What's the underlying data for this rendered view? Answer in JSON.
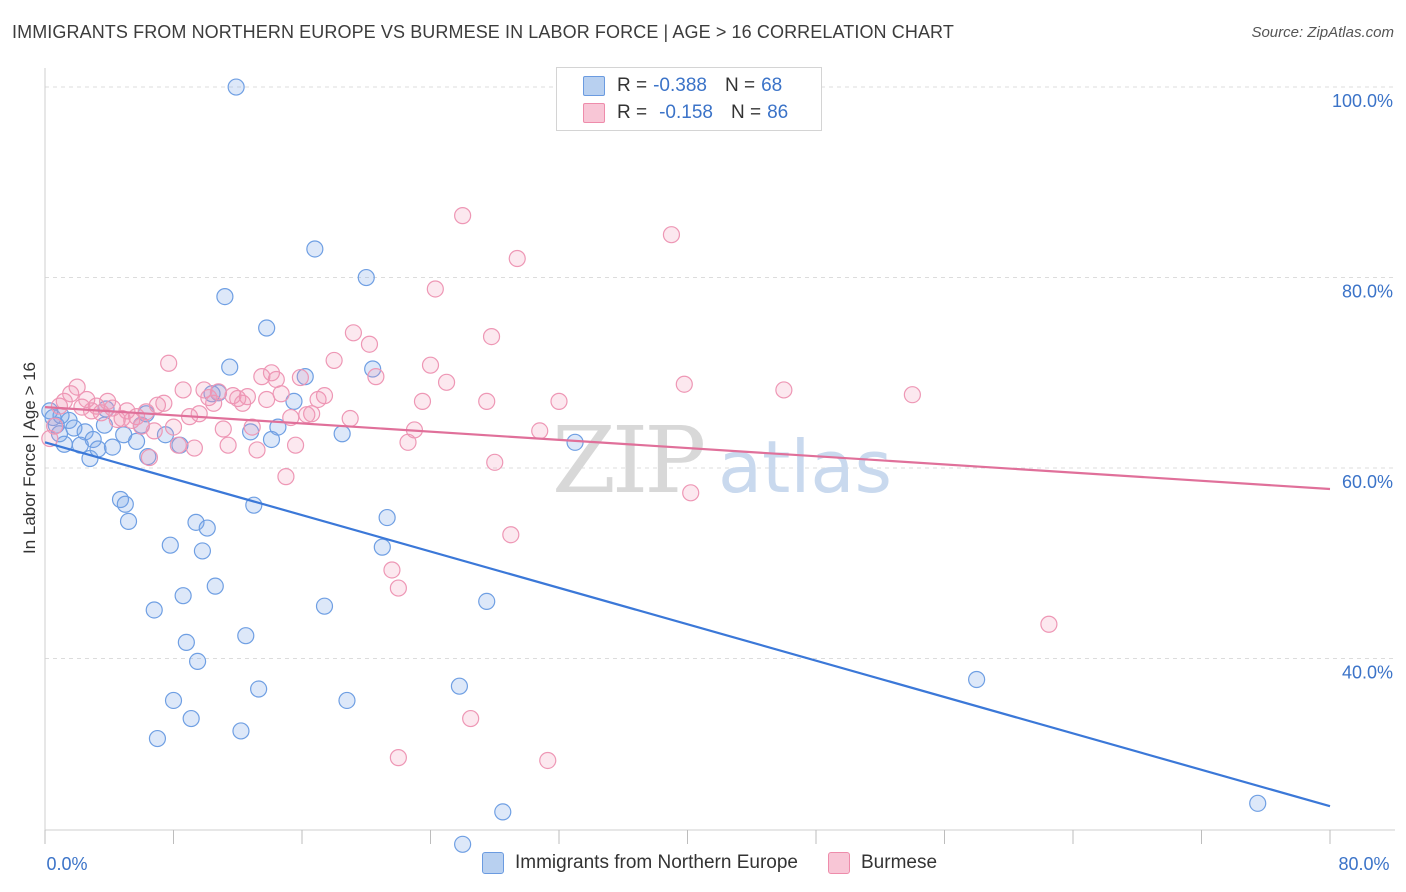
{
  "title": "IMMIGRANTS FROM NORTHERN EUROPE VS BURMESE IN LABOR FORCE | AGE > 16 CORRELATION CHART",
  "source": "Source: ZipAtlas.com",
  "watermark": {
    "zip": "ZIP",
    "atlas": "atlas"
  },
  "legend": {
    "r_label": "R =",
    "n_label": "N =",
    "entries": [
      {
        "r": "-0.388",
        "n": "68",
        "swatch_fill": "#b8d0f0",
        "swatch_stroke": "#6b9be0"
      },
      {
        "r": "-0.158",
        "n": "86",
        "swatch_fill": "#f8c6d6",
        "swatch_stroke": "#ee8cab"
      }
    ]
  },
  "chart_data": {
    "type": "scatter",
    "title": "IMMIGRANTS FROM NORTHERN EUROPE VS BURMESE IN LABOR FORCE | AGE > 16 CORRELATION CHART",
    "xlabel": "",
    "ylabel": "In Labor Force | Age > 16",
    "xlim": [
      0,
      80
    ],
    "ylim": [
      22,
      102
    ],
    "x_tick_labels": [
      "0.0%",
      "80.0%"
    ],
    "y_ticks": [
      40,
      60,
      80,
      100
    ],
    "y_tick_labels": [
      "40.0%",
      "60.0%",
      "80.0%",
      "100.0%"
    ],
    "grid": true,
    "colors": {
      "blue": "#3b78d8",
      "pink": "#e0709a",
      "blue_fill": "rgba(120,165,230,0.25)",
      "pink_fill": "rgba(240,150,180,0.22)"
    },
    "series": [
      {
        "name": "Immigrants from Northern Europe",
        "color": "#3b78d8",
        "trend": {
          "x": [
            0,
            80
          ],
          "y": [
            62.7,
            24.5
          ]
        },
        "points": [
          [
            0.5,
            65.3
          ],
          [
            0.7,
            64.5
          ],
          [
            1.2,
            62.5
          ],
          [
            1.5,
            65.0
          ],
          [
            1.8,
            64.2
          ],
          [
            2.5,
            63.8
          ],
          [
            2.8,
            61.0
          ],
          [
            3.0,
            63.0
          ],
          [
            3.3,
            62.0
          ],
          [
            3.7,
            64.5
          ],
          [
            4.2,
            62.2
          ],
          [
            4.7,
            56.7
          ],
          [
            5.0,
            56.2
          ],
          [
            5.2,
            54.4
          ],
          [
            4.9,
            63.5
          ],
          [
            5.7,
            62.8
          ],
          [
            6.0,
            64.5
          ],
          [
            6.3,
            65.7
          ],
          [
            6.4,
            61.2
          ],
          [
            6.8,
            45.1
          ],
          [
            7.0,
            31.6
          ],
          [
            7.5,
            63.5
          ],
          [
            7.8,
            51.9
          ],
          [
            8.0,
            35.6
          ],
          [
            8.4,
            62.4
          ],
          [
            8.6,
            46.6
          ],
          [
            8.8,
            41.7
          ],
          [
            9.1,
            33.7
          ],
          [
            9.4,
            54.3
          ],
          [
            9.5,
            39.7
          ],
          [
            9.8,
            51.3
          ],
          [
            10.1,
            53.7
          ],
          [
            10.4,
            67.8
          ],
          [
            10.6,
            47.6
          ],
          [
            10.8,
            67.9
          ],
          [
            11.2,
            78.0
          ],
          [
            11.5,
            70.6
          ],
          [
            11.9,
            100.0
          ],
          [
            12.2,
            32.4
          ],
          [
            12.5,
            42.4
          ],
          [
            12.8,
            63.8
          ],
          [
            13.0,
            56.1
          ],
          [
            13.3,
            36.8
          ],
          [
            13.8,
            74.7
          ],
          [
            14.1,
            63.0
          ],
          [
            14.5,
            64.3
          ],
          [
            15.5,
            67.0
          ],
          [
            16.2,
            69.6
          ],
          [
            16.8,
            83.0
          ],
          [
            17.4,
            45.5
          ],
          [
            18.5,
            63.6
          ],
          [
            18.8,
            35.6
          ],
          [
            20.0,
            80.0
          ],
          [
            20.4,
            70.4
          ],
          [
            21.0,
            51.7
          ],
          [
            21.3,
            54.8
          ],
          [
            25.8,
            37.1
          ],
          [
            27.5,
            46.0
          ],
          [
            28.5,
            23.9
          ],
          [
            26.0,
            20.5
          ],
          [
            33.0,
            62.7
          ],
          [
            58.0,
            37.8
          ],
          [
            75.5,
            24.8
          ],
          [
            0.3,
            66.0
          ],
          [
            0.9,
            63.6
          ],
          [
            2.2,
            62.4
          ],
          [
            1.0,
            65.5
          ],
          [
            3.8,
            66.2
          ]
        ]
      },
      {
        "name": "Burmese",
        "color": "#e0709a",
        "trend": {
          "x": [
            0,
            80
          ],
          "y": [
            66.4,
            57.8
          ]
        },
        "points": [
          [
            0.3,
            63.1
          ],
          [
            0.6,
            64.4
          ],
          [
            0.9,
            66.5
          ],
          [
            1.2,
            67.0
          ],
          [
            1.6,
            67.8
          ],
          [
            2.0,
            68.5
          ],
          [
            2.3,
            66.4
          ],
          [
            2.6,
            67.2
          ],
          [
            2.9,
            66.0
          ],
          [
            3.2,
            66.5
          ],
          [
            3.5,
            65.8
          ],
          [
            3.9,
            67.0
          ],
          [
            4.2,
            66.3
          ],
          [
            4.5,
            65.1
          ],
          [
            4.8,
            65.2
          ],
          [
            5.1,
            66.0
          ],
          [
            5.4,
            65.0
          ],
          [
            5.7,
            65.4
          ],
          [
            6.0,
            64.4
          ],
          [
            6.3,
            65.9
          ],
          [
            6.5,
            61.1
          ],
          [
            6.8,
            63.9
          ],
          [
            7.0,
            66.6
          ],
          [
            7.4,
            66.8
          ],
          [
            7.7,
            71.0
          ],
          [
            8.0,
            64.3
          ],
          [
            8.3,
            62.4
          ],
          [
            8.6,
            68.2
          ],
          [
            9.0,
            65.4
          ],
          [
            9.3,
            62.1
          ],
          [
            9.6,
            65.7
          ],
          [
            9.9,
            68.2
          ],
          [
            10.2,
            67.4
          ],
          [
            10.5,
            66.8
          ],
          [
            10.8,
            68.0
          ],
          [
            11.1,
            64.1
          ],
          [
            11.4,
            62.4
          ],
          [
            11.7,
            67.6
          ],
          [
            12.0,
            67.3
          ],
          [
            12.3,
            66.8
          ],
          [
            12.6,
            67.5
          ],
          [
            12.9,
            64.3
          ],
          [
            13.2,
            61.9
          ],
          [
            13.5,
            69.6
          ],
          [
            13.8,
            67.2
          ],
          [
            14.1,
            70.0
          ],
          [
            14.4,
            69.3
          ],
          [
            14.7,
            67.8
          ],
          [
            15.0,
            59.1
          ],
          [
            15.3,
            65.3
          ],
          [
            15.6,
            62.4
          ],
          [
            15.9,
            69.5
          ],
          [
            16.3,
            65.6
          ],
          [
            16.6,
            65.7
          ],
          [
            17.0,
            67.2
          ],
          [
            17.4,
            67.6
          ],
          [
            18.0,
            71.3
          ],
          [
            19.0,
            65.2
          ],
          [
            19.2,
            74.2
          ],
          [
            20.2,
            73.0
          ],
          [
            20.6,
            69.6
          ],
          [
            21.6,
            49.3
          ],
          [
            22.0,
            47.4
          ],
          [
            22.6,
            62.7
          ],
          [
            23.0,
            64.0
          ],
          [
            23.5,
            67.0
          ],
          [
            24.0,
            70.8
          ],
          [
            24.3,
            78.8
          ],
          [
            25.0,
            69.0
          ],
          [
            26.0,
            86.5
          ],
          [
            26.5,
            33.7
          ],
          [
            27.5,
            67.0
          ],
          [
            27.8,
            73.8
          ],
          [
            28.0,
            60.6
          ],
          [
            29.0,
            53.0
          ],
          [
            29.4,
            82.0
          ],
          [
            30.8,
            63.9
          ],
          [
            31.3,
            29.3
          ],
          [
            32.0,
            67.0
          ],
          [
            39.0,
            84.5
          ],
          [
            39.8,
            68.8
          ],
          [
            40.2,
            57.4
          ],
          [
            46.0,
            68.2
          ],
          [
            54.0,
            67.7
          ],
          [
            62.5,
            43.6
          ],
          [
            22.0,
            29.6
          ]
        ]
      }
    ]
  },
  "bottom_legend": [
    {
      "label": "Immigrants from Northern Europe",
      "fill": "#b8d0f0",
      "stroke": "#6b9be0"
    },
    {
      "label": "Burmese",
      "fill": "#f8c6d6",
      "stroke": "#ee8cab"
    }
  ]
}
